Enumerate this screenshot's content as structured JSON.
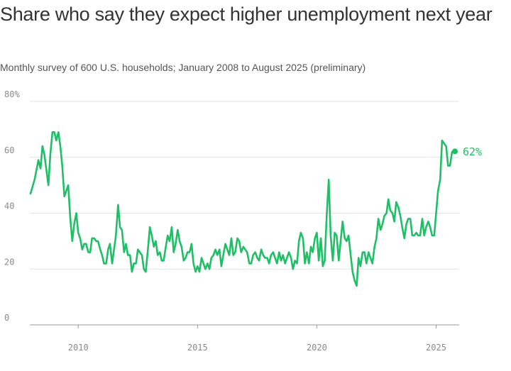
{
  "header": {
    "title": "Share who say they expect higher unemployment next year",
    "subtitle": "Monthly survey of 600 U.S. households; January 2008 to August 2025 (preliminary)"
  },
  "colors": {
    "line": "#1fbf66",
    "grid": "#e3e3e3",
    "axis": "#9a9a9a"
  },
  "chart_data": {
    "type": "line",
    "title": "Share who say they expect higher unemployment next year",
    "subtitle": "Monthly survey of 600 U.S. households; January 2008 to August 2025 (preliminary)",
    "xlabel": "",
    "ylabel": "",
    "xlim": [
      2008,
      2025.67
    ],
    "ylim": [
      0,
      80
    ],
    "y_ticks": [
      0,
      20,
      40,
      60,
      80
    ],
    "y_tick_labels": [
      "0",
      "20",
      "40",
      "60",
      "80%"
    ],
    "x_ticks": [
      2010,
      2015,
      2020,
      2025
    ],
    "x_tick_labels": [
      "2010",
      "2015",
      "2020",
      "2025"
    ],
    "grid": "horizontal",
    "end_label": "62%",
    "series": [
      {
        "points": [
          [
            2008.0,
            47
          ],
          [
            2008.17,
            52
          ],
          [
            2008.33,
            59
          ],
          [
            2008.42,
            56
          ],
          [
            2008.5,
            64
          ],
          [
            2008.58,
            61
          ],
          [
            2008.75,
            50
          ],
          [
            2008.83,
            61
          ],
          [
            2008.92,
            69
          ],
          [
            2009.0,
            69
          ],
          [
            2009.08,
            66
          ],
          [
            2009.17,
            69
          ],
          [
            2009.25,
            64
          ],
          [
            2009.33,
            57
          ],
          [
            2009.42,
            46
          ],
          [
            2009.58,
            50
          ],
          [
            2009.67,
            38
          ],
          [
            2009.75,
            30
          ],
          [
            2009.83,
            36
          ],
          [
            2009.92,
            40
          ],
          [
            2010.0,
            33
          ],
          [
            2010.08,
            31
          ],
          [
            2010.17,
            27
          ],
          [
            2010.25,
            29
          ],
          [
            2010.33,
            29
          ],
          [
            2010.42,
            26
          ],
          [
            2010.5,
            26
          ],
          [
            2010.58,
            31
          ],
          [
            2010.67,
            31
          ],
          [
            2010.75,
            30
          ],
          [
            2010.83,
            30
          ],
          [
            2010.92,
            27
          ],
          [
            2011.0,
            25
          ],
          [
            2011.08,
            22
          ],
          [
            2011.17,
            22
          ],
          [
            2011.25,
            27
          ],
          [
            2011.33,
            29
          ],
          [
            2011.42,
            22
          ],
          [
            2011.5,
            27
          ],
          [
            2011.58,
            32
          ],
          [
            2011.67,
            43
          ],
          [
            2011.75,
            35
          ],
          [
            2011.83,
            34
          ],
          [
            2011.92,
            26
          ],
          [
            2012.0,
            29
          ],
          [
            2012.08,
            25
          ],
          [
            2012.17,
            25
          ],
          [
            2012.25,
            19
          ],
          [
            2012.33,
            22
          ],
          [
            2012.42,
            22
          ],
          [
            2012.5,
            27
          ],
          [
            2012.58,
            26
          ],
          [
            2012.67,
            25
          ],
          [
            2012.75,
            20
          ],
          [
            2012.83,
            19
          ],
          [
            2012.92,
            27
          ],
          [
            2013.0,
            35
          ],
          [
            2013.08,
            32
          ],
          [
            2013.17,
            28
          ],
          [
            2013.25,
            30
          ],
          [
            2013.33,
            25
          ],
          [
            2013.42,
            26
          ],
          [
            2013.5,
            23
          ],
          [
            2013.58,
            23
          ],
          [
            2013.67,
            28
          ],
          [
            2013.75,
            32
          ],
          [
            2013.83,
            30
          ],
          [
            2013.92,
            35
          ],
          [
            2014.0,
            26
          ],
          [
            2014.08,
            29
          ],
          [
            2014.17,
            34
          ],
          [
            2014.25,
            30
          ],
          [
            2014.33,
            28
          ],
          [
            2014.42,
            23
          ],
          [
            2014.5,
            24
          ],
          [
            2014.58,
            26
          ],
          [
            2014.67,
            26
          ],
          [
            2014.75,
            29
          ],
          [
            2014.83,
            22
          ],
          [
            2014.92,
            19
          ],
          [
            2015.0,
            21
          ],
          [
            2015.08,
            19
          ],
          [
            2015.17,
            24
          ],
          [
            2015.25,
            22
          ],
          [
            2015.33,
            20
          ],
          [
            2015.42,
            22
          ],
          [
            2015.5,
            20
          ],
          [
            2015.58,
            24
          ],
          [
            2015.67,
            25
          ],
          [
            2015.75,
            27
          ],
          [
            2015.83,
            25
          ],
          [
            2015.92,
            27
          ],
          [
            2016.0,
            21
          ],
          [
            2016.08,
            25
          ],
          [
            2016.17,
            29
          ],
          [
            2016.25,
            27
          ],
          [
            2016.33,
            25
          ],
          [
            2016.42,
            31
          ],
          [
            2016.5,
            25
          ],
          [
            2016.58,
            26
          ],
          [
            2016.67,
            31
          ],
          [
            2016.75,
            30
          ],
          [
            2016.83,
            26
          ],
          [
            2016.92,
            28
          ],
          [
            2017.0,
            27
          ],
          [
            2017.08,
            26
          ],
          [
            2017.17,
            22
          ],
          [
            2017.25,
            22
          ],
          [
            2017.33,
            25
          ],
          [
            2017.42,
            26
          ],
          [
            2017.5,
            24
          ],
          [
            2017.58,
            23
          ],
          [
            2017.67,
            27
          ],
          [
            2017.75,
            25
          ],
          [
            2017.83,
            24
          ],
          [
            2017.92,
            24
          ],
          [
            2018.0,
            22
          ],
          [
            2018.08,
            25
          ],
          [
            2018.17,
            26
          ],
          [
            2018.25,
            24
          ],
          [
            2018.33,
            22
          ],
          [
            2018.42,
            26
          ],
          [
            2018.5,
            23
          ],
          [
            2018.58,
            25
          ],
          [
            2018.67,
            22
          ],
          [
            2018.75,
            24
          ],
          [
            2018.83,
            26
          ],
          [
            2018.92,
            24
          ],
          [
            2019.0,
            20
          ],
          [
            2019.08,
            23
          ],
          [
            2019.17,
            22
          ],
          [
            2019.25,
            30
          ],
          [
            2019.33,
            33
          ],
          [
            2019.42,
            31
          ],
          [
            2019.5,
            22
          ],
          [
            2019.58,
            26
          ],
          [
            2019.67,
            22
          ],
          [
            2019.75,
            28
          ],
          [
            2019.83,
            26
          ],
          [
            2019.92,
            31
          ],
          [
            2020.0,
            33
          ],
          [
            2020.08,
            23
          ],
          [
            2020.17,
            31
          ],
          [
            2020.25,
            21
          ],
          [
            2020.33,
            23
          ],
          [
            2020.42,
            40
          ],
          [
            2020.5,
            52
          ],
          [
            2020.58,
            32
          ],
          [
            2020.67,
            23
          ],
          [
            2020.75,
            33
          ],
          [
            2020.83,
            32
          ],
          [
            2020.92,
            23
          ],
          [
            2021.0,
            30
          ],
          [
            2021.08,
            37
          ],
          [
            2021.17,
            31
          ],
          [
            2021.25,
            30
          ],
          [
            2021.33,
            32
          ],
          [
            2021.42,
            25
          ],
          [
            2021.5,
            19
          ],
          [
            2021.58,
            16
          ],
          [
            2021.67,
            14
          ],
          [
            2021.75,
            24
          ],
          [
            2021.83,
            21
          ],
          [
            2021.92,
            26
          ],
          [
            2022.0,
            26
          ],
          [
            2022.08,
            22
          ],
          [
            2022.17,
            26
          ],
          [
            2022.25,
            24
          ],
          [
            2022.33,
            22
          ],
          [
            2022.42,
            28
          ],
          [
            2022.5,
            31
          ],
          [
            2022.58,
            38
          ],
          [
            2022.67,
            34
          ],
          [
            2022.75,
            36
          ],
          [
            2022.83,
            39
          ],
          [
            2022.92,
            40
          ],
          [
            2023.0,
            45
          ],
          [
            2023.08,
            41
          ],
          [
            2023.17,
            40
          ],
          [
            2023.25,
            37
          ],
          [
            2023.33,
            44
          ],
          [
            2023.42,
            42
          ],
          [
            2023.5,
            39
          ],
          [
            2023.58,
            35
          ],
          [
            2023.67,
            31
          ],
          [
            2023.75,
            36
          ],
          [
            2023.83,
            38
          ],
          [
            2023.92,
            38
          ],
          [
            2024.0,
            32
          ],
          [
            2024.08,
            32
          ],
          [
            2024.17,
            33
          ],
          [
            2024.25,
            32
          ],
          [
            2024.33,
            32
          ],
          [
            2024.42,
            38
          ],
          [
            2024.5,
            32
          ],
          [
            2024.58,
            35
          ],
          [
            2024.67,
            37
          ],
          [
            2024.75,
            35
          ],
          [
            2024.83,
            32
          ],
          [
            2024.92,
            32
          ],
          [
            2025.0,
            40
          ],
          [
            2025.08,
            48
          ],
          [
            2025.17,
            52
          ],
          [
            2025.25,
            66
          ],
          [
            2025.33,
            65
          ],
          [
            2025.42,
            64
          ],
          [
            2025.5,
            57
          ],
          [
            2025.58,
            57
          ],
          [
            2025.67,
            62
          ]
        ]
      }
    ]
  }
}
